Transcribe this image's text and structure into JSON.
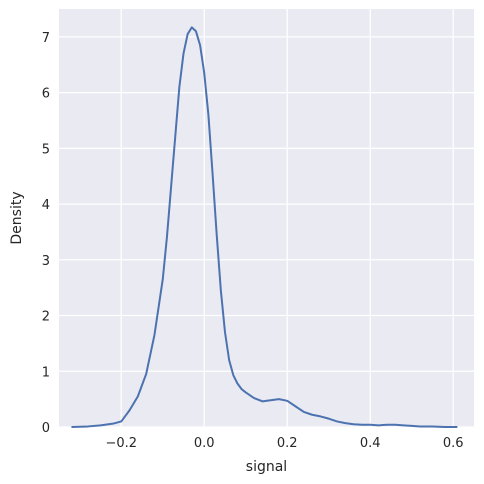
{
  "chart_data": {
    "type": "line",
    "title": "",
    "xlabel": "signal",
    "ylabel": "Density",
    "xlim": [
      -0.35,
      0.65
    ],
    "ylim": [
      0,
      7.5
    ],
    "grid": true,
    "x_ticks": [
      -0.2,
      0.0,
      0.2,
      0.4,
      0.6
    ],
    "x_tick_labels": [
      "−0.2",
      "0.0",
      "0.2",
      "0.4",
      "0.6"
    ],
    "y_ticks": [
      0,
      1,
      2,
      3,
      4,
      5,
      6,
      7
    ],
    "y_tick_labels": [
      "0",
      "1",
      "2",
      "3",
      "4",
      "5",
      "6",
      "7"
    ],
    "colors": {
      "background": "#eaeaf2",
      "grid": "#ffffff",
      "line": "#4c72b0"
    },
    "series": [
      {
        "x": [
          -0.32,
          -0.28,
          -0.25,
          -0.22,
          -0.2,
          -0.18,
          -0.16,
          -0.14,
          -0.12,
          -0.1,
          -0.09,
          -0.08,
          -0.07,
          -0.06,
          -0.05,
          -0.04,
          -0.03,
          -0.02,
          -0.01,
          0.0,
          0.01,
          0.02,
          0.03,
          0.04,
          0.05,
          0.06,
          0.07,
          0.08,
          0.09,
          0.1,
          0.12,
          0.14,
          0.16,
          0.18,
          0.2,
          0.22,
          0.24,
          0.26,
          0.28,
          0.3,
          0.32,
          0.34,
          0.36,
          0.38,
          0.4,
          0.42,
          0.44,
          0.46,
          0.48,
          0.5,
          0.52,
          0.55,
          0.58,
          0.61
        ],
        "y": [
          0.0,
          0.01,
          0.03,
          0.06,
          0.1,
          0.3,
          0.55,
          0.95,
          1.65,
          2.65,
          3.4,
          4.3,
          5.2,
          6.1,
          6.7,
          7.05,
          7.17,
          7.1,
          6.85,
          6.35,
          5.6,
          4.55,
          3.45,
          2.45,
          1.7,
          1.2,
          0.93,
          0.78,
          0.68,
          0.62,
          0.52,
          0.46,
          0.48,
          0.5,
          0.47,
          0.37,
          0.27,
          0.22,
          0.19,
          0.15,
          0.1,
          0.07,
          0.05,
          0.04,
          0.04,
          0.03,
          0.04,
          0.04,
          0.03,
          0.02,
          0.01,
          0.01,
          0.0,
          0.0
        ]
      }
    ]
  }
}
